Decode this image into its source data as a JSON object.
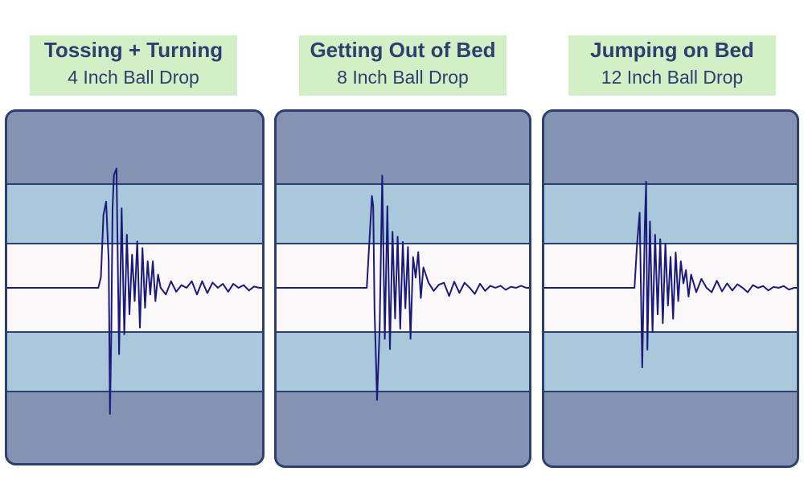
{
  "colors": {
    "header_bg": "#d3efc6",
    "header_text": "#2d3f6e",
    "outer_band": "#8492b4",
    "middle_band": "#aac8dc",
    "center_band": "#fcf8f9",
    "border": "#2d3f6e",
    "signal": "#1a1a7a"
  },
  "panels": [
    {
      "title": "Tossing + Turning",
      "subtitle": "4 Inch Ball Drop"
    },
    {
      "title": "Getting Out of Bed",
      "subtitle": "8 Inch Ball Drop"
    },
    {
      "title": "Jumping on Bed",
      "subtitle": "12 Inch Ball Drop"
    }
  ],
  "chart_data": [
    {
      "type": "line",
      "title": "Tossing + Turning",
      "subtitle": "4 Inch Ball Drop",
      "x": [
        0.0,
        0.36,
        0.37,
        0.38,
        0.39,
        0.4,
        0.405,
        0.41,
        0.415,
        0.42,
        0.43,
        0.44,
        0.45,
        0.46,
        0.47,
        0.48,
        0.49,
        0.5,
        0.51,
        0.52,
        0.53,
        0.54,
        0.55,
        0.56,
        0.57,
        0.58,
        0.59,
        0.6,
        0.62,
        0.64,
        0.66,
        0.68,
        0.7,
        0.72,
        0.74,
        0.76,
        0.78,
        0.8,
        0.82,
        0.84,
        0.86,
        0.88,
        0.9,
        0.92,
        0.94,
        0.96,
        0.98,
        1.0
      ],
      "y": [
        0,
        0,
        0.08,
        0.55,
        0.65,
        0.2,
        -0.95,
        -0.35,
        0.6,
        0.85,
        0.9,
        -0.5,
        0.6,
        -0.35,
        0.4,
        -0.2,
        0.25,
        -0.1,
        0.35,
        -0.3,
        0.3,
        -0.15,
        0.2,
        -0.05,
        0.2,
        -0.1,
        0.1,
        0,
        -0.05,
        0.05,
        -0.03,
        0.02,
        0,
        0.05,
        -0.05,
        0.05,
        -0.04,
        0.04,
        0,
        0.03,
        -0.03,
        0.03,
        0,
        0.02,
        -0.02,
        0.01,
        0,
        0
      ],
      "ylim": [
        -1,
        1
      ]
    },
    {
      "type": "line",
      "title": "Getting Out of Bed",
      "subtitle": "8 Inch Ball Drop",
      "x": [
        0.0,
        0.36,
        0.37,
        0.38,
        0.385,
        0.39,
        0.4,
        0.41,
        0.42,
        0.43,
        0.44,
        0.45,
        0.46,
        0.47,
        0.48,
        0.49,
        0.5,
        0.51,
        0.52,
        0.53,
        0.54,
        0.55,
        0.56,
        0.57,
        0.58,
        0.6,
        0.62,
        0.64,
        0.66,
        0.68,
        0.7,
        0.72,
        0.74,
        0.76,
        0.78,
        0.8,
        0.82,
        0.84,
        0.86,
        0.88,
        0.9,
        0.92,
        0.94,
        0.96,
        0.98,
        1.0
      ],
      "y": [
        0,
        0,
        0.45,
        0.9,
        0.8,
        -0.2,
        -1.1,
        -0.4,
        1.1,
        -0.5,
        0.8,
        -0.6,
        0.55,
        -0.3,
        0.5,
        -0.4,
        0.45,
        -0.2,
        0.4,
        -0.5,
        0.3,
        0.1,
        0.35,
        -0.1,
        0.2,
        0.05,
        -0.03,
        0.03,
        0.05,
        -0.08,
        0.06,
        -0.05,
        0.05,
        0,
        -0.06,
        0.04,
        -0.03,
        0.02,
        0,
        0.02,
        -0.02,
        0.01,
        0,
        0.02,
        0,
        0
      ],
      "ylim": [
        -1.3,
        1.3
      ]
    },
    {
      "type": "line",
      "title": "Jumping on Bed",
      "subtitle": "12 Inch Ball Drop",
      "x": [
        0.0,
        0.36,
        0.37,
        0.38,
        0.39,
        0.4,
        0.405,
        0.41,
        0.42,
        0.43,
        0.44,
        0.45,
        0.46,
        0.47,
        0.48,
        0.49,
        0.5,
        0.51,
        0.52,
        0.53,
        0.54,
        0.55,
        0.56,
        0.57,
        0.58,
        0.6,
        0.62,
        0.64,
        0.66,
        0.68,
        0.7,
        0.72,
        0.74,
        0.76,
        0.78,
        0.8,
        0.82,
        0.84,
        0.86,
        0.88,
        0.9,
        0.92,
        0.94,
        0.96,
        0.98,
        1.0
      ],
      "y": [
        0,
        0,
        0.5,
        0.85,
        -0.9,
        0.7,
        1.2,
        -0.7,
        0.75,
        -0.5,
        0.6,
        -0.3,
        0.55,
        -0.4,
        0.5,
        -0.2,
        0.35,
        -0.35,
        0.4,
        -0.15,
        0.3,
        0.05,
        0.2,
        -0.1,
        0.15,
        -0.05,
        0.1,
        0,
        -0.05,
        0.08,
        -0.04,
        0.05,
        -0.03,
        0.04,
        0,
        -0.05,
        0.03,
        0,
        0.02,
        -0.03,
        0.01,
        0,
        0.02,
        -0.02,
        0,
        0
      ],
      "ylim": [
        -1.5,
        1.5
      ]
    }
  ]
}
